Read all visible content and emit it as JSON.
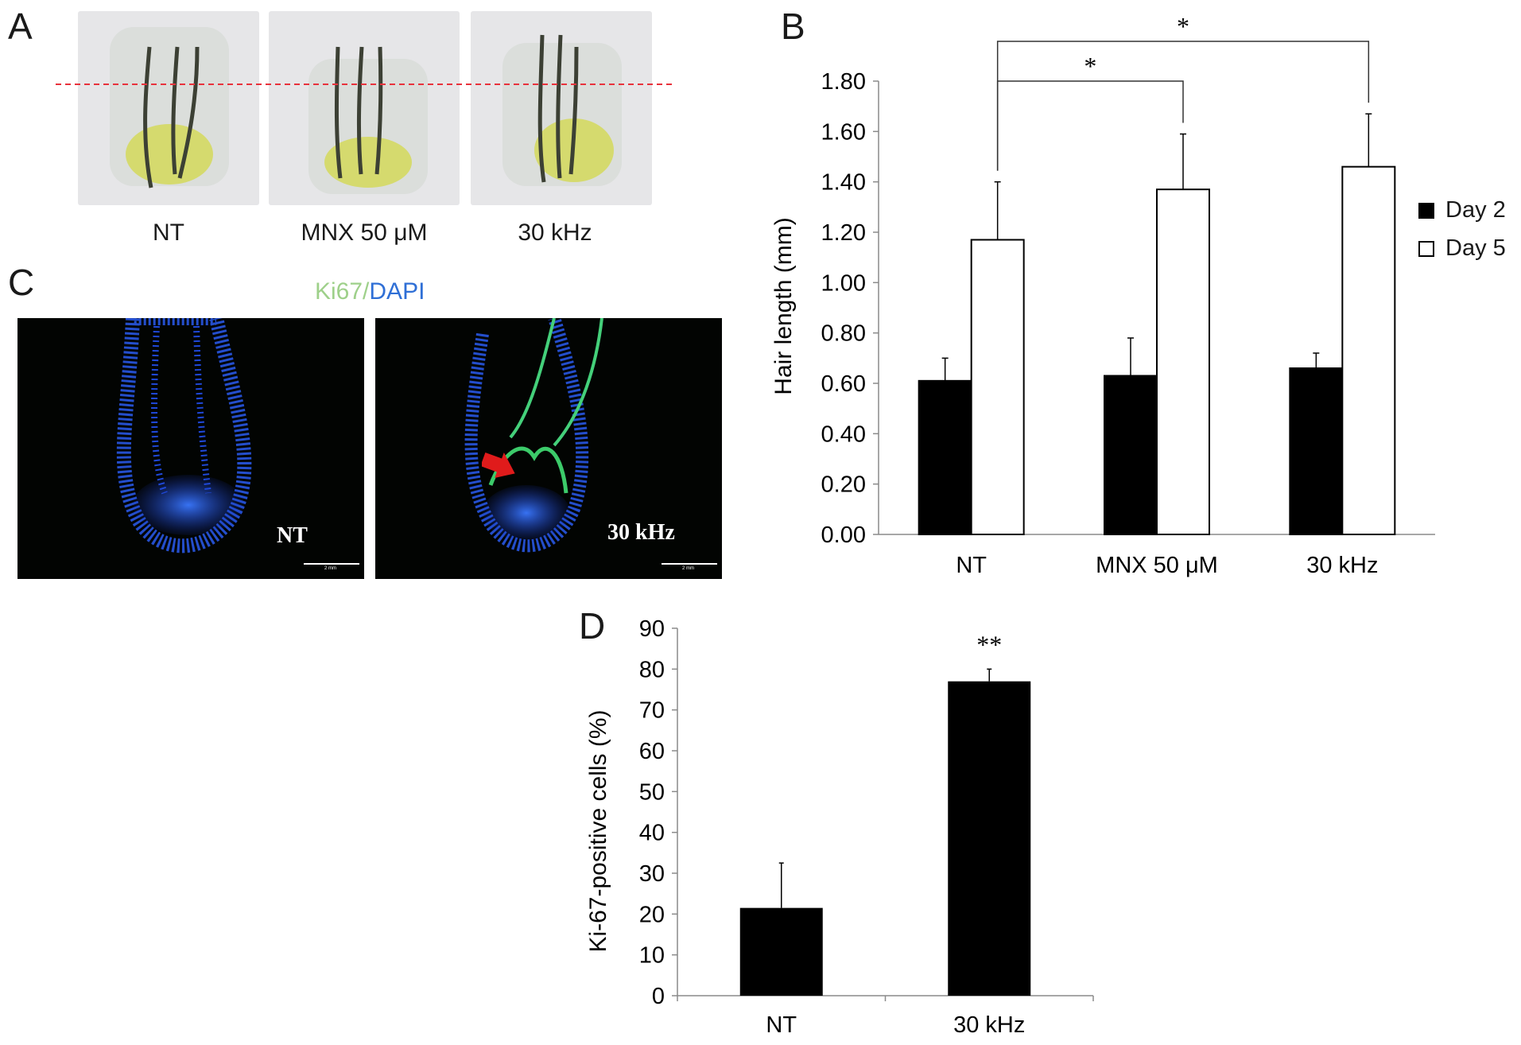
{
  "panels": {
    "a": "A",
    "b": "B",
    "c": "C",
    "d": "D"
  },
  "panel_a": {
    "labels": [
      "NT",
      "MNX 50 μM",
      "30 kHz"
    ],
    "guide_line_color": "#e8323c"
  },
  "panel_c": {
    "stain_ki67": "Ki67",
    "stain_sep": "/",
    "stain_dapi": "DAPI",
    "stain_ki67_color": "#9ed08a",
    "stain_dapi_color": "#2f6fd6",
    "images": [
      {
        "label": "NT",
        "scale": "2 mm"
      },
      {
        "label": "30 kHz",
        "scale": "2 mm"
      }
    ],
    "arrow_color": "#e01b1b"
  },
  "chart_data": [
    {
      "type": "bar",
      "panel": "B",
      "categories": [
        "NT",
        "MNX 50 μM",
        "30 kHz"
      ],
      "series": [
        {
          "name": "Day 2",
          "values": [
            0.61,
            0.63,
            0.66
          ],
          "errors": [
            0.09,
            0.15,
            0.06
          ],
          "fill": "#000000"
        },
        {
          "name": "Day 5",
          "values": [
            1.17,
            1.37,
            1.46
          ],
          "errors": [
            0.23,
            0.22,
            0.21
          ],
          "fill": "#ffffff"
        }
      ],
      "ylabel": "Hair length (mm)",
      "ylim": [
        0,
        1.8
      ],
      "yticks": [
        "0.00",
        "0.20",
        "0.40",
        "0.60",
        "0.80",
        "1.00",
        "1.20",
        "1.40",
        "1.60",
        "1.80"
      ],
      "legend": "right",
      "significance": [
        {
          "from": "NT",
          "to": "MNX 50 μM",
          "label": "*"
        },
        {
          "from": "NT",
          "to": "30 kHz",
          "label": "*"
        }
      ],
      "grid": false
    },
    {
      "type": "bar",
      "panel": "D",
      "categories": [
        "NT",
        "30 kHz"
      ],
      "values": [
        21.5,
        77
      ],
      "errors": [
        11,
        3
      ],
      "ylabel": "Ki-67-positive cells (%)",
      "ylim": [
        0,
        90
      ],
      "yticks": [
        "0",
        "10",
        "20",
        "30",
        "40",
        "50",
        "60",
        "70",
        "80",
        "90"
      ],
      "annotations": [
        {
          "category": "30 kHz",
          "label": "**"
        }
      ],
      "grid": false
    }
  ]
}
